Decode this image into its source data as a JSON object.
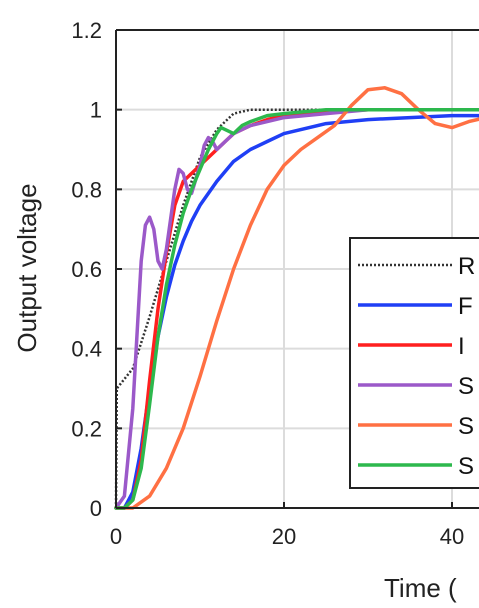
{
  "chart_data": {
    "type": "line",
    "xlabel": "Time (",
    "ylabel": "Output voltage",
    "xlim": [
      0,
      44
    ],
    "ylim": [
      0,
      1.2
    ],
    "grid": true,
    "legend_position": "right",
    "x_ticks": [
      0,
      20,
      40
    ],
    "x_tick_labels": [
      "0",
      "20",
      "40"
    ],
    "y_ticks": [
      0,
      0.2,
      0.4,
      0.6,
      0.8,
      1.0,
      1.2
    ],
    "y_tick_labels": [
      "0",
      "0.2",
      "0.4",
      "0.6",
      "0.8",
      "1",
      "1.2"
    ],
    "series": [
      {
        "name": "R",
        "color": "#333333",
        "dash": "dotted",
        "x": [
          0,
          0.1,
          2,
          4,
          6,
          8,
          10,
          12,
          14,
          16,
          20,
          25,
          30,
          35,
          40,
          44
        ],
        "y": [
          0,
          0.3,
          0.35,
          0.48,
          0.62,
          0.76,
          0.88,
          0.95,
          0.99,
          1.0,
          1.0,
          1.0,
          1.0,
          1.0,
          1.0,
          1.0
        ]
      },
      {
        "name": "F",
        "color": "#1f3ff5",
        "dash": "solid",
        "x": [
          0,
          1,
          2,
          3,
          4,
          5,
          6,
          7,
          8,
          9,
          10,
          12,
          14,
          16,
          18,
          20,
          25,
          30,
          35,
          40,
          44
        ],
        "y": [
          0,
          0.0,
          0.04,
          0.15,
          0.3,
          0.43,
          0.53,
          0.61,
          0.67,
          0.72,
          0.76,
          0.82,
          0.87,
          0.9,
          0.92,
          0.94,
          0.965,
          0.975,
          0.98,
          0.985,
          0.985
        ]
      },
      {
        "name": "I",
        "color": "#ff1f1f",
        "dash": "solid",
        "x": [
          0,
          1,
          2,
          3,
          4,
          5,
          6,
          7,
          8,
          9,
          10,
          11,
          12,
          13,
          14,
          16,
          18,
          20,
          25,
          30,
          35,
          40,
          44
        ],
        "y": [
          0,
          0.0,
          0.02,
          0.12,
          0.32,
          0.5,
          0.64,
          0.76,
          0.82,
          0.84,
          0.86,
          0.88,
          0.9,
          0.92,
          0.94,
          0.96,
          0.975,
          0.985,
          0.995,
          1.0,
          1.0,
          1.0,
          1.0
        ]
      },
      {
        "name": "S",
        "color": "#9b59c9",
        "dash": "solid",
        "x": [
          0,
          1,
          2,
          3,
          3.5,
          4,
          4.5,
          5,
          5.5,
          6,
          7,
          7.5,
          8,
          8.5,
          9,
          10,
          10.5,
          11,
          11.5,
          12,
          13,
          14,
          16,
          20,
          25,
          30,
          35,
          40,
          44
        ],
        "y": [
          0,
          0.03,
          0.25,
          0.62,
          0.71,
          0.73,
          0.7,
          0.62,
          0.6,
          0.65,
          0.8,
          0.85,
          0.84,
          0.8,
          0.79,
          0.86,
          0.91,
          0.93,
          0.92,
          0.9,
          0.92,
          0.94,
          0.96,
          0.98,
          0.99,
          1.0,
          1.0,
          1.0,
          1.0
        ]
      },
      {
        "name": "S",
        "color": "#ff7043",
        "dash": "solid",
        "x": [
          0,
          2,
          4,
          6,
          8,
          10,
          12,
          14,
          16,
          18,
          20,
          22,
          24,
          26,
          28,
          30,
          32,
          34,
          36,
          38,
          40,
          42,
          44
        ],
        "y": [
          0,
          0.0,
          0.03,
          0.1,
          0.2,
          0.33,
          0.47,
          0.6,
          0.71,
          0.8,
          0.86,
          0.9,
          0.93,
          0.96,
          1.01,
          1.05,
          1.055,
          1.04,
          1.0,
          0.965,
          0.955,
          0.97,
          0.98
        ]
      },
      {
        "name": "S",
        "color": "#2db84d",
        "dash": "solid",
        "x": [
          0,
          1,
          2,
          3,
          4,
          5,
          6,
          7,
          8,
          9,
          10,
          11,
          12,
          12.5,
          13,
          14,
          15,
          16,
          18,
          20,
          25,
          30,
          35,
          40,
          44
        ],
        "y": [
          0,
          0.0,
          0.02,
          0.1,
          0.26,
          0.43,
          0.56,
          0.66,
          0.74,
          0.8,
          0.85,
          0.9,
          0.94,
          0.955,
          0.95,
          0.94,
          0.96,
          0.97,
          0.985,
          0.99,
          1.0,
          1.0,
          1.0,
          1.0,
          1.0
        ]
      }
    ]
  }
}
